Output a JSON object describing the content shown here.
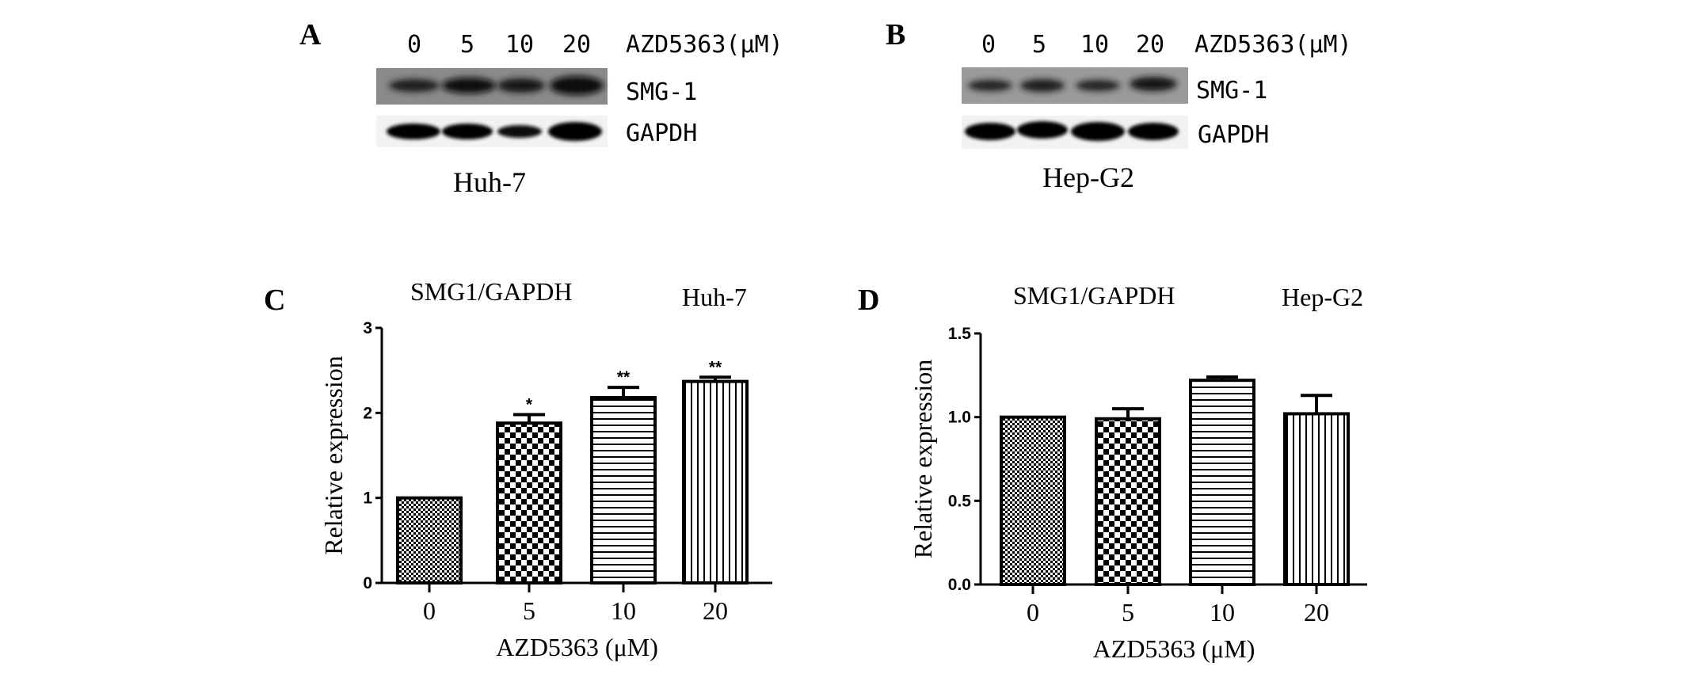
{
  "panels": {
    "A": {
      "letter": "A",
      "doses": [
        "0",
        "5",
        "10",
        "20"
      ],
      "treatment_label": "AZD5363(μM)",
      "band_labels": [
        "SMG-1",
        "GAPDH"
      ],
      "cell_line": "Huh-7"
    },
    "B": {
      "letter": "B",
      "doses": [
        "0",
        "5",
        "10",
        "20"
      ],
      "treatment_label": "AZD5363(μM)",
      "band_labels": [
        "SMG-1",
        "GAPDH"
      ],
      "cell_line": "Hep-G2"
    },
    "C": {
      "letter": "C",
      "title": "SMG1/GAPDH",
      "cell_line": "Huh-7"
    },
    "D": {
      "letter": "D",
      "title": "SMG1/GAPDH",
      "cell_line": "Hep-G2"
    }
  },
  "chart_data": [
    {
      "type": "bar",
      "panel": "C",
      "title": "SMG1/GAPDH",
      "subtitle": "Huh-7",
      "categories": [
        "0",
        "5",
        "10",
        "20"
      ],
      "values": [
        1.0,
        1.88,
        2.18,
        2.37
      ],
      "errors": [
        0,
        0.1,
        0.12,
        0.05
      ],
      "significance": [
        "",
        "*",
        "**",
        "**"
      ],
      "patterns": [
        "fine-check",
        "checker",
        "horizontal",
        "vertical"
      ],
      "xlabel": "AZD5363 (μM)",
      "ylabel": "Relative expression",
      "ylim": [
        0,
        3
      ],
      "yticks": [
        "0",
        "1",
        "2",
        "3"
      ],
      "grid": false
    },
    {
      "type": "bar",
      "panel": "D",
      "title": "SMG1/GAPDH",
      "subtitle": "Hep-G2",
      "categories": [
        "0",
        "5",
        "10",
        "20"
      ],
      "values": [
        1.0,
        0.99,
        1.22,
        1.02
      ],
      "errors": [
        0,
        0.06,
        0.02,
        0.11
      ],
      "significance": [
        "",
        "",
        "",
        ""
      ],
      "patterns": [
        "fine-check",
        "checker",
        "horizontal",
        "vertical"
      ],
      "xlabel": "AZD5363 (μM)",
      "ylabel": "Relative expression",
      "ylim": [
        0,
        1.5
      ],
      "yticks": [
        "0.0",
        "0.5",
        "1.0",
        "1.5"
      ],
      "grid": false
    }
  ]
}
